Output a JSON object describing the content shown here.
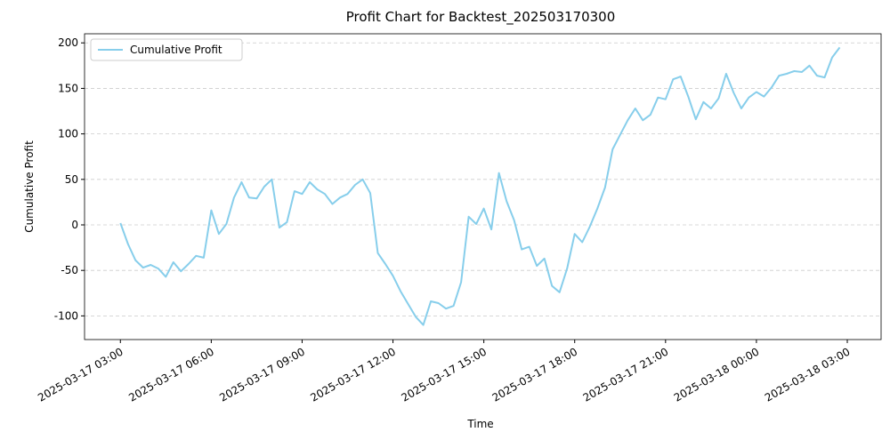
{
  "chart_data": {
    "type": "line",
    "title": "Profit Chart for Backtest_202503170300",
    "xlabel": "Time",
    "ylabel": "Cumulative Profit",
    "x": [
      "2025-03-17 03:00",
      "2025-03-17 03:15",
      "2025-03-17 03:30",
      "2025-03-17 03:45",
      "2025-03-17 04:00",
      "2025-03-17 04:15",
      "2025-03-17 04:30",
      "2025-03-17 04:45",
      "2025-03-17 05:00",
      "2025-03-17 05:15",
      "2025-03-17 05:30",
      "2025-03-17 05:45",
      "2025-03-17 06:00",
      "2025-03-17 06:15",
      "2025-03-17 06:30",
      "2025-03-17 06:45",
      "2025-03-17 07:00",
      "2025-03-17 07:15",
      "2025-03-17 07:30",
      "2025-03-17 07:45",
      "2025-03-17 08:00",
      "2025-03-17 08:15",
      "2025-03-17 08:30",
      "2025-03-17 08:45",
      "2025-03-17 09:00",
      "2025-03-17 09:15",
      "2025-03-17 09:30",
      "2025-03-17 09:45",
      "2025-03-17 10:00",
      "2025-03-17 10:15",
      "2025-03-17 10:30",
      "2025-03-17 10:45",
      "2025-03-17 11:00",
      "2025-03-17 11:15",
      "2025-03-17 11:30",
      "2025-03-17 11:45",
      "2025-03-17 12:00",
      "2025-03-17 12:15",
      "2025-03-17 12:30",
      "2025-03-17 12:45",
      "2025-03-17 13:00",
      "2025-03-17 13:15",
      "2025-03-17 13:30",
      "2025-03-17 13:45",
      "2025-03-17 14:00",
      "2025-03-17 14:15",
      "2025-03-17 14:30",
      "2025-03-17 14:45",
      "2025-03-17 15:00",
      "2025-03-17 15:15",
      "2025-03-17 15:30",
      "2025-03-17 15:45",
      "2025-03-17 16:00",
      "2025-03-17 16:15",
      "2025-03-17 16:30",
      "2025-03-17 16:45",
      "2025-03-17 17:00",
      "2025-03-17 17:15",
      "2025-03-17 17:30",
      "2025-03-17 17:45",
      "2025-03-17 18:00",
      "2025-03-17 18:15",
      "2025-03-17 18:30",
      "2025-03-17 18:45",
      "2025-03-17 19:00",
      "2025-03-17 19:15",
      "2025-03-17 19:30",
      "2025-03-17 19:45",
      "2025-03-17 20:00",
      "2025-03-17 20:15",
      "2025-03-17 20:30",
      "2025-03-17 20:45",
      "2025-03-17 21:00",
      "2025-03-17 21:15",
      "2025-03-17 21:30",
      "2025-03-17 21:45",
      "2025-03-17 22:00",
      "2025-03-17 22:15",
      "2025-03-17 22:30",
      "2025-03-17 22:45",
      "2025-03-17 23:00",
      "2025-03-17 23:15",
      "2025-03-17 23:30",
      "2025-03-17 23:45",
      "2025-03-18 00:00",
      "2025-03-18 00:15",
      "2025-03-18 00:30",
      "2025-03-18 00:45",
      "2025-03-18 01:00",
      "2025-03-18 01:15",
      "2025-03-18 01:30",
      "2025-03-18 01:45",
      "2025-03-18 02:00",
      "2025-03-18 02:15",
      "2025-03-18 02:30",
      "2025-03-18 02:45"
    ],
    "series": [
      {
        "name": "Cumulative Profit",
        "color": "#87ceeb",
        "values": [
          2,
          -21,
          -39,
          -47,
          -44,
          -48,
          -57,
          -41,
          -51,
          -43,
          -34,
          -36,
          16,
          -10,
          1,
          30,
          47,
          30,
          29,
          42,
          50,
          -3,
          3,
          37,
          34,
          47,
          39,
          34,
          23,
          30,
          34,
          44,
          50,
          35,
          -31,
          -43,
          -56,
          -73,
          -87,
          -101,
          -110,
          -84,
          -86,
          -92,
          -89,
          -63,
          9,
          1,
          18,
          -5,
          57,
          26,
          5,
          -27,
          -24,
          -45,
          -37,
          -67,
          -74,
          -48,
          -10,
          -19,
          -2,
          18,
          41,
          83,
          99,
          115,
          128,
          115,
          121,
          140,
          138,
          160,
          163,
          141,
          116,
          135,
          128,
          139,
          166,
          145,
          128,
          140,
          146,
          141,
          151,
          164,
          166,
          169,
          168,
          175,
          164,
          162,
          184,
          195
        ]
      }
    ],
    "xlim": [
      "2025-03-17 01:49",
      "2025-03-18 04:07"
    ],
    "xticks": [
      "2025-03-17 03:00",
      "2025-03-17 06:00",
      "2025-03-17 09:00",
      "2025-03-17 12:00",
      "2025-03-17 15:00",
      "2025-03-17 18:00",
      "2025-03-17 21:00",
      "2025-03-18 00:00",
      "2025-03-18 03:00"
    ],
    "ylim": [
      -126,
      210
    ],
    "yticks": [
      -100,
      -50,
      0,
      50,
      100,
      150,
      200
    ],
    "grid": "y",
    "legend": "upper left"
  }
}
